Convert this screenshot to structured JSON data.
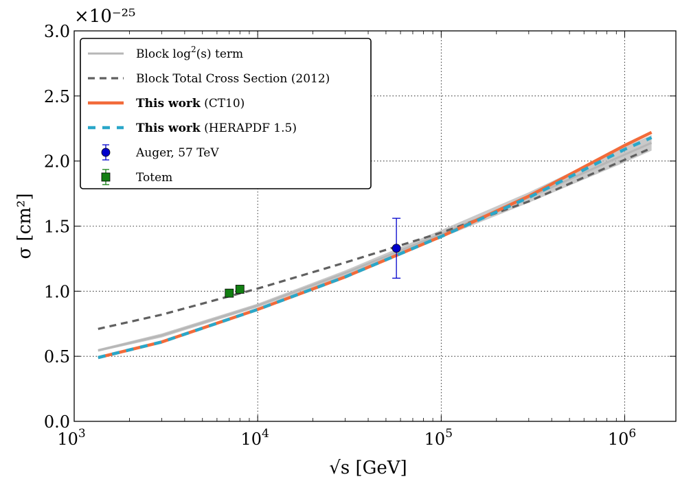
{
  "chart_data": {
    "type": "line",
    "xlabel": "√s [GeV]",
    "ylabel": "σ [cm²]",
    "y_offset_label": "×10⁻²⁵",
    "x_scale": "log",
    "xlim": [
      1000,
      1900000
    ],
    "ylim": [
      0.0,
      3.0
    ],
    "grid": true,
    "legend_position": "top-left",
    "colors": {
      "block_log2": "#b7b7b7",
      "block_total": "#606060",
      "ct10": "#f26b3a",
      "herapdf": "#2aa7c9",
      "auger": "#0000cc",
      "totem": "#127f12"
    },
    "x_ticks": [
      {
        "value": 1000,
        "base": "10",
        "exp": "3"
      },
      {
        "value": 10000,
        "base": "10",
        "exp": "4"
      },
      {
        "value": 100000,
        "base": "10",
        "exp": "5"
      },
      {
        "value": 1000000,
        "base": "10",
        "exp": "6"
      }
    ],
    "y_ticks": [
      {
        "value": 0.0,
        "label": "0.0"
      },
      {
        "value": 0.5,
        "label": "0.5"
      },
      {
        "value": 1.0,
        "label": "1.0"
      },
      {
        "value": 1.5,
        "label": "1.5"
      },
      {
        "value": 2.0,
        "label": "2.0"
      },
      {
        "value": 2.5,
        "label": "2.5"
      },
      {
        "value": 3.0,
        "label": "3.0"
      }
    ],
    "bands": [
      {
        "name": "Block log²(s) term",
        "x": [
          1350,
          3000,
          10000,
          30000,
          100000,
          300000,
          1000000,
          1400000
        ],
        "y": [
          0.545,
          0.66,
          0.89,
          1.14,
          1.44,
          1.72,
          2.05,
          2.14
        ],
        "upper": [
          0.555,
          0.675,
          0.905,
          1.16,
          1.47,
          1.76,
          2.11,
          2.2
        ],
        "lower": [
          0.535,
          0.645,
          0.875,
          1.12,
          1.41,
          1.68,
          1.99,
          2.08
        ]
      }
    ],
    "series": [
      {
        "name": "Block Total Cross Section (2012)",
        "style": "dashed",
        "x": [
          1350,
          3000,
          10000,
          30000,
          100000,
          300000,
          1000000,
          1400000
        ],
        "y": [
          0.71,
          0.82,
          1.02,
          1.22,
          1.45,
          1.69,
          2.01,
          2.1
        ]
      },
      {
        "name": "This work (CT10)",
        "style": "solid",
        "x": [
          1350,
          3000,
          10000,
          30000,
          100000,
          300000,
          1000000,
          1400000
        ],
        "y": [
          0.49,
          0.61,
          0.86,
          1.11,
          1.42,
          1.73,
          2.12,
          2.22
        ]
      },
      {
        "name": "This work (HERAPDF 1.5)",
        "style": "dashed",
        "x": [
          1350,
          3000,
          10000,
          30000,
          100000,
          300000,
          1000000,
          1400000
        ],
        "y": [
          0.49,
          0.61,
          0.86,
          1.11,
          1.42,
          1.72,
          2.09,
          2.18
        ]
      }
    ],
    "points": [
      {
        "name": "Auger, 57 TeV",
        "marker": "circle",
        "x": 57000,
        "y": 1.33,
        "yerr_low": 1.1,
        "yerr_high": 1.56
      },
      {
        "name": "Totem",
        "marker": "square",
        "x": 7000,
        "y": 0.985,
        "yerr_low": 0.965,
        "yerr_high": 1.005
      },
      {
        "name": "Totem",
        "marker": "square",
        "x": 8000,
        "y": 1.015,
        "yerr_low": 0.995,
        "yerr_high": 1.035
      }
    ],
    "legend": [
      {
        "bold": "",
        "text": "Block log",
        "sup": "2",
        "tail": "(s) term"
      },
      {
        "bold": "",
        "text": "Block Total Cross Section (2012)",
        "sup": "",
        "tail": ""
      },
      {
        "bold": "This work",
        "text": " (CT10)",
        "sup": "",
        "tail": ""
      },
      {
        "bold": "This work",
        "text": " (HERAPDF 1.5)",
        "sup": "",
        "tail": ""
      },
      {
        "bold": "",
        "text": "Auger, 57 TeV",
        "sup": "",
        "tail": ""
      },
      {
        "bold": "",
        "text": "Totem",
        "sup": "",
        "tail": ""
      }
    ]
  }
}
